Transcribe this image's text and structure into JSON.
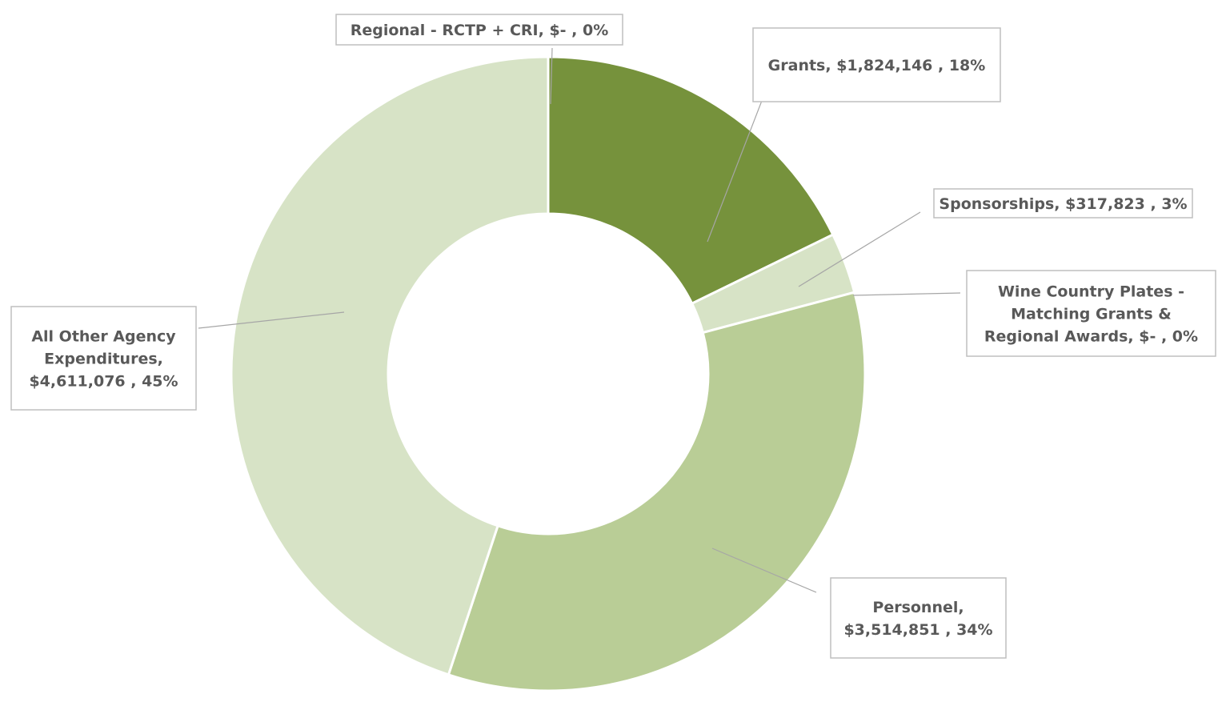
{
  "chart_data": {
    "type": "pie",
    "variant": "donut",
    "title": "",
    "series": [
      {
        "name": "",
        "slices": [
          {
            "label": "Regional - RCTP + CRI",
            "value": 0,
            "value_text": "$-",
            "percent": 0,
            "color": "#76923c",
            "label_lines": [
              "Regional - RCTP + CRI,  $-   , 0%"
            ]
          },
          {
            "label": "Grants",
            "value": 1824146,
            "value_text": "$1,824,146",
            "percent": 18,
            "color": "#76923c",
            "label_lines": [
              "Grants,  $1,824,146 , 18%"
            ]
          },
          {
            "label": "Sponsorships",
            "value": 317823,
            "value_text": "$317,823",
            "percent": 3,
            "color": "#d7e3c6",
            "label_lines": [
              "Sponsorships,  $317,823 , 3%"
            ]
          },
          {
            "label": "Wine Country Plates - Matching Grants & Regional Awards",
            "value": 0,
            "value_text": "$-",
            "percent": 0,
            "color": "#c3d69b",
            "label_lines": [
              "Wine Country Plates -",
              "Matching Grants &",
              "Regional Awards,  $-   , 0%"
            ]
          },
          {
            "label": "Personnel",
            "value": 3514851,
            "value_text": "$3,514,851",
            "percent": 34,
            "color": "#b9cd96",
            "label_lines": [
              "Personnel,",
              "$3,514,851 , 34%"
            ]
          },
          {
            "label": "All Other Agency Expenditures",
            "value": 4611076,
            "value_text": "$4,611,076",
            "percent": 45,
            "color": "#d7e3c6",
            "label_lines": [
              "All Other Agency",
              "Expenditures,",
              "$4,611,076 , 45%"
            ]
          }
        ]
      }
    ]
  }
}
